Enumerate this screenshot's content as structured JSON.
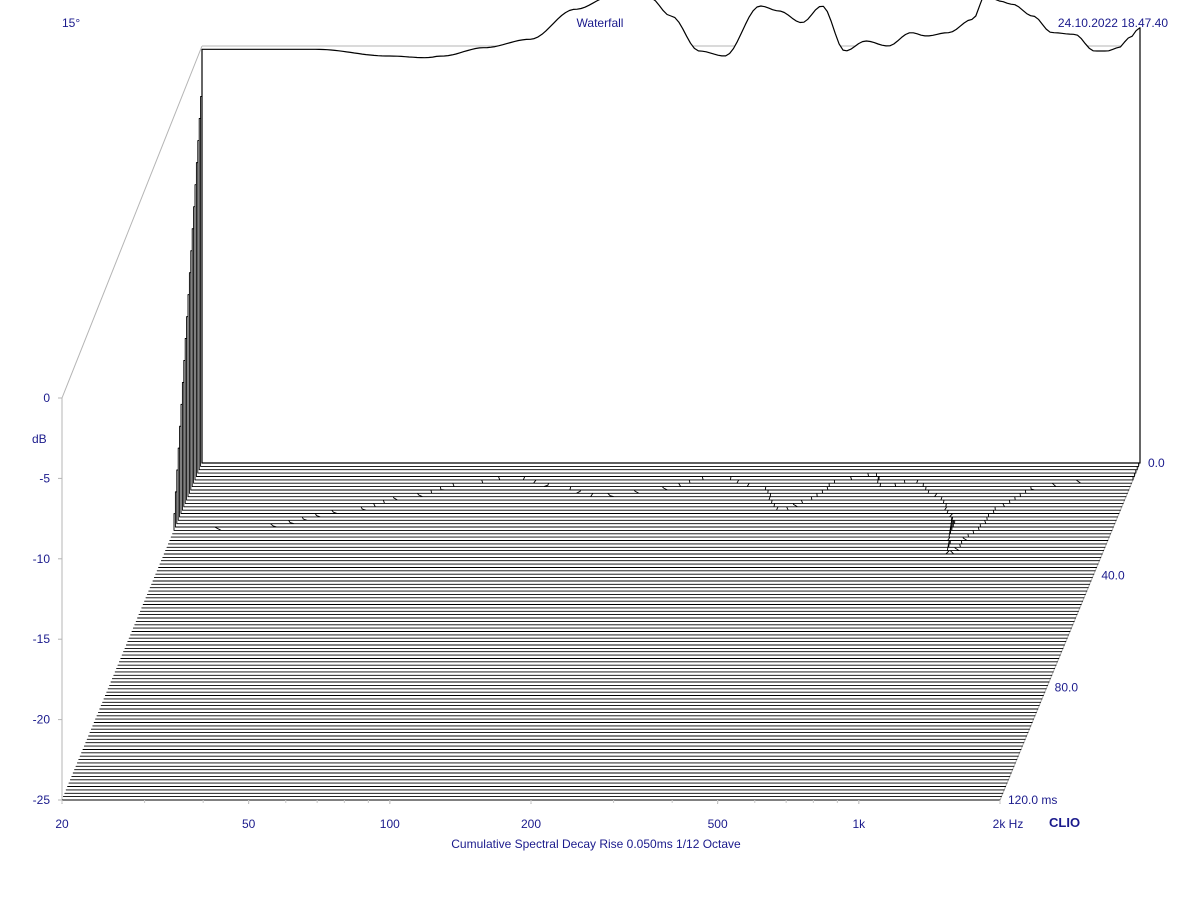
{
  "header": {
    "angle": "15°",
    "title": "Waterfall",
    "timestamp": "24.10.2022 18.47.40"
  },
  "footer": {
    "caption": "Cumulative Spectral Decay   Rise 0.050ms   1/12 Octave",
    "brand": "CLIO"
  },
  "chart_data": {
    "type": "area",
    "title": "Waterfall",
    "x_scale": "log",
    "xlim": [
      20,
      2000
    ],
    "ylim": [
      -25,
      0
    ],
    "zlim": [
      0,
      120
    ],
    "x_ticks": [
      {
        "value": 20,
        "label": "20"
      },
      {
        "value": 50,
        "label": "50"
      },
      {
        "value": 100,
        "label": "100"
      },
      {
        "value": 200,
        "label": "200"
      },
      {
        "value": 500,
        "label": "500"
      },
      {
        "value": 1000,
        "label": "1k"
      },
      {
        "value": 2000,
        "label": "2k Hz"
      }
    ],
    "y_ticks": [
      {
        "value": 0,
        "label": "0"
      },
      {
        "value": -5,
        "label": "-5"
      },
      {
        "value": -10,
        "label": "-10"
      },
      {
        "value": -15,
        "label": "-15"
      },
      {
        "value": -20,
        "label": "-20"
      },
      {
        "value": -25,
        "label": "-25"
      }
    ],
    "y_unit": "dB",
    "z_ticks": [
      {
        "value": 0,
        "label": "0.0"
      },
      {
        "value": 40,
        "label": "40.0"
      },
      {
        "value": 80,
        "label": "80.0"
      },
      {
        "value": 120,
        "label": "120.0  ms"
      }
    ],
    "slice_count": 100,
    "time_step_ms": 1.2,
    "first_slice": [
      [
        20,
        -0.2
      ],
      [
        25,
        -0.2
      ],
      [
        35,
        -0.2
      ],
      [
        50,
        -0.6
      ],
      [
        60,
        -0.7
      ],
      [
        65,
        -0.6
      ],
      [
        80,
        -0.1
      ],
      [
        100,
        0.4
      ],
      [
        125,
        2.2
      ],
      [
        150,
        3.0
      ],
      [
        180,
        2.9
      ],
      [
        200,
        1.8
      ],
      [
        230,
        -0.3
      ],
      [
        260,
        -0.6
      ],
      [
        310,
        2.4
      ],
      [
        340,
        2.1
      ],
      [
        380,
        1.4
      ],
      [
        420,
        2.4
      ],
      [
        470,
        -0.3
      ],
      [
        520,
        0.3
      ],
      [
        580,
        0.0
      ],
      [
        650,
        0.8
      ],
      [
        700,
        0.6
      ],
      [
        780,
        0.8
      ],
      [
        880,
        1.6
      ],
      [
        940,
        3.2
      ],
      [
        1000,
        2.7
      ],
      [
        1070,
        2.5
      ],
      [
        1180,
        1.8
      ],
      [
        1300,
        0.8
      ],
      [
        1450,
        0.7
      ],
      [
        1600,
        -0.3
      ],
      [
        1700,
        -0.3
      ],
      [
        1800,
        -0.1
      ],
      [
        1900,
        0.5
      ],
      [
        2000,
        1.1
      ]
    ],
    "decay_profile": [
      [
        20,
        28
      ],
      [
        30,
        26
      ],
      [
        45,
        20
      ],
      [
        60,
        14
      ],
      [
        75,
        9
      ],
      [
        95,
        6
      ],
      [
        120,
        9
      ],
      [
        150,
        12
      ],
      [
        200,
        10
      ],
      [
        260,
        6
      ],
      [
        330,
        9
      ],
      [
        380,
        18
      ],
      [
        420,
        14
      ],
      [
        480,
        7
      ],
      [
        560,
        5
      ],
      [
        600,
        10
      ],
      [
        680,
        7
      ],
      [
        800,
        13
      ],
      [
        900,
        20
      ],
      [
        950,
        32
      ],
      [
        1000,
        26
      ],
      [
        1100,
        16
      ],
      [
        1250,
        10
      ],
      [
        1500,
        8
      ],
      [
        1800,
        7
      ],
      [
        2000,
        7
      ]
    ]
  }
}
